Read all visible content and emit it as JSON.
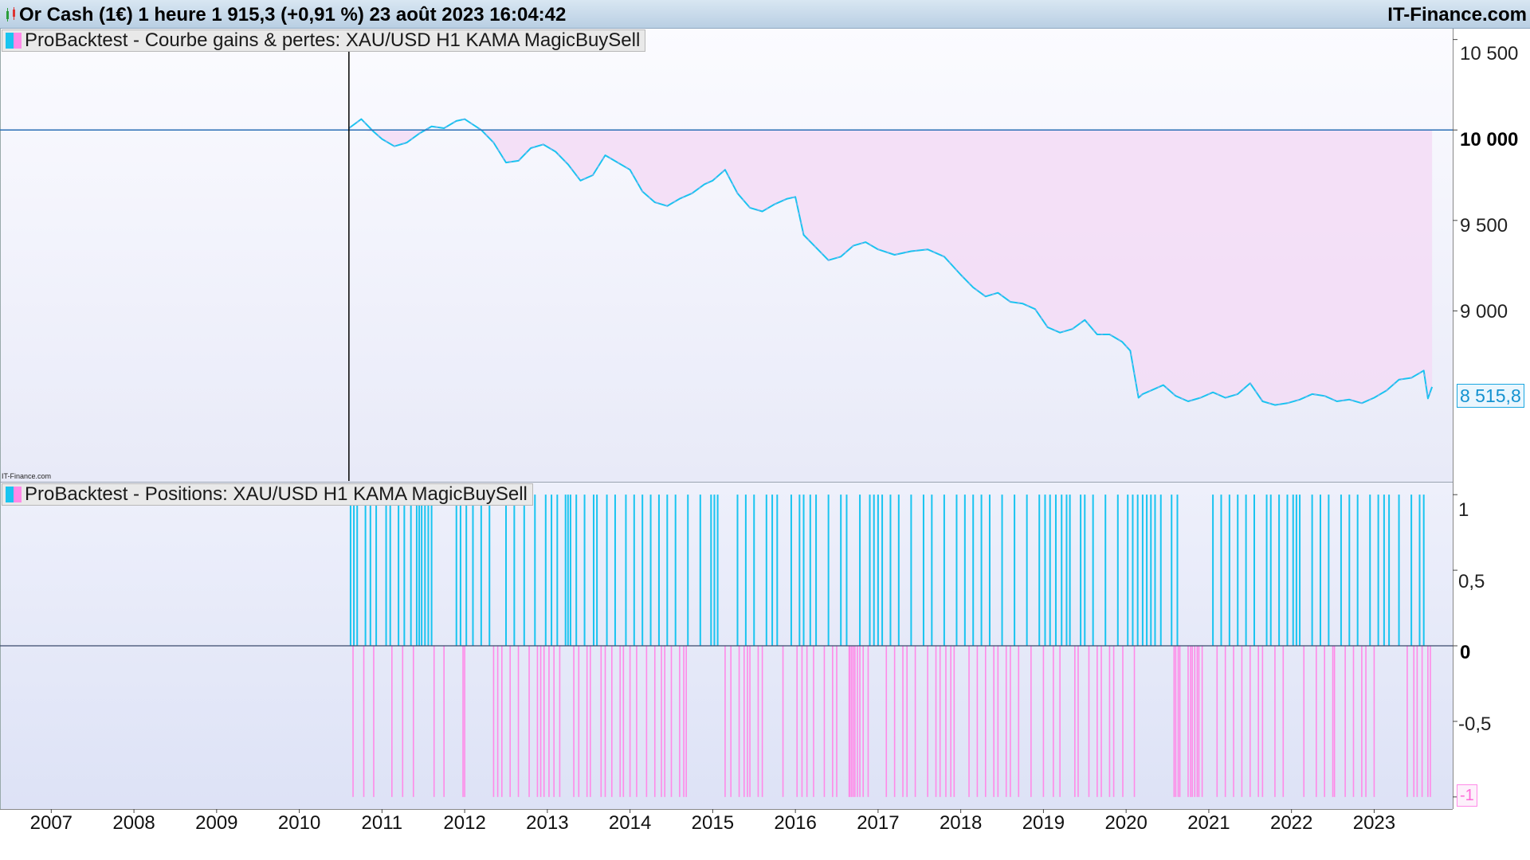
{
  "window": {
    "title": "Or Cash (1€) 1 heure 1 915,3 (+0,91 %) 23 août 2023 16:04:42",
    "site": "IT-Finance.com",
    "watermark": "IT-Finance.com"
  },
  "colors": {
    "buy": "#19c4f0",
    "sell": "#ff8ae8",
    "fill": "#f3dcf6",
    "reference_line": "#2a6fb5"
  },
  "chart_data": [
    {
      "type": "area",
      "legend": "ProBacktest - Courbe gains & pertes: XAU/USD H1 KAMA MagicBuySell",
      "y_ticks": [
        "10 500",
        "10 000",
        "9 500",
        "9 000"
      ],
      "y_tick_values": [
        10500,
        10000,
        9500,
        9000
      ],
      "ylim": [
        8060,
        10560
      ],
      "reference_value": 10000,
      "last_value_label": "8 515,8",
      "last_value": 8515.8,
      "series": [
        {
          "x": [
            2010.6,
            2010.75,
            2010.9,
            2011.0,
            2011.15,
            2011.3,
            2011.45,
            2011.6,
            2011.75,
            2011.9,
            2012.0,
            2012.1,
            2012.2,
            2012.35,
            2012.5,
            2012.65,
            2012.8,
            2012.95,
            2013.1,
            2013.25,
            2013.4,
            2013.55,
            2013.7,
            2013.85,
            2014.0,
            2014.15,
            2014.3,
            2014.45,
            2014.6,
            2014.75,
            2014.9,
            2015.0,
            2015.15,
            2015.3,
            2015.45,
            2015.6,
            2015.75,
            2015.9,
            2016.0,
            2016.1,
            2016.25,
            2016.4,
            2016.55,
            2016.7,
            2016.85,
            2017.0,
            2017.2,
            2017.4,
            2017.6,
            2017.8,
            2018.0,
            2018.15,
            2018.3,
            2018.45,
            2018.6,
            2018.75,
            2018.9,
            2019.05,
            2019.2,
            2019.35,
            2019.5,
            2019.65,
            2019.8,
            2019.95,
            2020.05,
            2020.15,
            2020.2,
            2020.3,
            2020.45,
            2020.6,
            2020.75,
            2020.9,
            2021.05,
            2021.2,
            2021.35,
            2021.5,
            2021.65,
            2021.8,
            2021.95,
            2022.1,
            2022.25,
            2022.4,
            2022.55,
            2022.7,
            2022.85,
            2023.0,
            2023.15,
            2023.3,
            2023.45,
            2023.6,
            2023.7,
            2023.65
          ],
          "y": [
            10010,
            10060,
            9990,
            9950,
            9910,
            9930,
            9980,
            10020,
            10010,
            10050,
            10060,
            10030,
            10000,
            9930,
            9820,
            9830,
            9900,
            9920,
            9880,
            9810,
            9720,
            9750,
            9860,
            9820,
            9780,
            9660,
            9600,
            9580,
            9620,
            9650,
            9700,
            9720,
            9780,
            9650,
            9570,
            9550,
            9590,
            9620,
            9630,
            9420,
            9350,
            9280,
            9300,
            9360,
            9380,
            9340,
            9310,
            9330,
            9340,
            9300,
            9200,
            9130,
            9080,
            9100,
            9050,
            9040,
            9010,
            8910,
            8880,
            8900,
            8950,
            8870,
            8870,
            8830,
            8780,
            8520,
            8540,
            8560,
            8590,
            8530,
            8500,
            8520,
            8550,
            8520,
            8540,
            8600,
            8500,
            8480,
            8490,
            8510,
            8540,
            8530,
            8500,
            8510,
            8490,
            8520,
            8560,
            8620,
            8630,
            8670,
            8580,
            8515.8
          ]
        }
      ]
    },
    {
      "type": "bar",
      "legend": "ProBacktest - Positions: XAU/USD H1 KAMA MagicBuySell",
      "y_ticks": [
        "1",
        "0,5",
        "0",
        "-0,5",
        "-1"
      ],
      "y_tick_values": [
        1,
        0.5,
        0,
        -0.5,
        -1
      ],
      "ylim": [
        -1.08,
        1.08
      ],
      "series": [
        {
          "name": "long",
          "value": 1,
          "x": [
            2010.62,
            2010.66,
            2010.7,
            2010.8,
            2010.86,
            2010.93,
            2011.05,
            2011.1,
            2011.2,
            2011.27,
            2011.35,
            2011.42,
            2011.45,
            2011.48,
            2011.52,
            2011.56,
            2011.6,
            2011.9,
            2011.95,
            2012.02,
            2012.1,
            2012.2,
            2012.3,
            2012.5,
            2012.6,
            2012.72,
            2012.85,
            2012.98,
            2013.05,
            2013.12,
            2013.22,
            2013.25,
            2013.28,
            2013.35,
            2013.45,
            2013.56,
            2013.6,
            2013.72,
            2013.82,
            2013.95,
            2014.05,
            2014.15,
            2014.25,
            2014.35,
            2014.45,
            2014.55,
            2014.7,
            2014.85,
            2014.98,
            2015.02,
            2015.06,
            2015.3,
            2015.4,
            2015.5,
            2015.65,
            2015.72,
            2015.78,
            2015.95,
            2016.05,
            2016.1,
            2016.18,
            2016.25,
            2016.4,
            2016.55,
            2016.62,
            2016.78,
            2016.9,
            2016.95,
            2017.0,
            2017.05,
            2017.15,
            2017.25,
            2017.4,
            2017.55,
            2017.65,
            2017.8,
            2017.95,
            2018.05,
            2018.15,
            2018.25,
            2018.35,
            2018.5,
            2018.65,
            2018.8,
            2018.95,
            2019.02,
            2019.08,
            2019.15,
            2019.22,
            2019.28,
            2019.32,
            2019.45,
            2019.5,
            2019.6,
            2019.75,
            2019.9,
            2020.02,
            2020.08,
            2020.14,
            2020.2,
            2020.25,
            2020.3,
            2020.35,
            2020.42,
            2020.55,
            2020.62,
            2021.05,
            2021.15,
            2021.25,
            2021.35,
            2021.45,
            2021.55,
            2021.7,
            2021.75,
            2021.85,
            2021.95,
            2022.02,
            2022.06,
            2022.1,
            2022.25,
            2022.35,
            2022.45,
            2022.6,
            2022.7,
            2022.8,
            2022.95,
            2023.05,
            2023.12,
            2023.18,
            2023.3,
            2023.45,
            2023.55,
            2023.6
          ]
        },
        {
          "name": "short",
          "value": -1,
          "x": [
            2010.65,
            2010.78,
            2010.9,
            2011.12,
            2011.25,
            2011.38,
            2011.63,
            2011.75,
            2011.98,
            2012.0,
            2012.35,
            2012.4,
            2012.45,
            2012.55,
            2012.65,
            2012.78,
            2012.88,
            2012.92,
            2012.96,
            2013.02,
            2013.08,
            2013.15,
            2013.32,
            2013.38,
            2013.48,
            2013.52,
            2013.65,
            2013.7,
            2013.78,
            2013.88,
            2013.92,
            2014.0,
            2014.08,
            2014.2,
            2014.3,
            2014.38,
            2014.42,
            2014.5,
            2014.6,
            2014.65,
            2014.68,
            2015.15,
            2015.22,
            2015.32,
            2015.38,
            2015.42,
            2015.45,
            2015.55,
            2015.6,
            2015.85,
            2016.02,
            2016.08,
            2016.14,
            2016.22,
            2016.35,
            2016.45,
            2016.5,
            2016.65,
            2016.66,
            2016.68,
            2016.7,
            2016.72,
            2016.75,
            2016.78,
            2016.82,
            2016.88,
            2017.1,
            2017.2,
            2017.3,
            2017.35,
            2017.45,
            2017.6,
            2017.7,
            2017.75,
            2017.82,
            2017.88,
            2017.92,
            2018.1,
            2018.2,
            2018.3,
            2018.4,
            2018.45,
            2018.55,
            2018.6,
            2018.7,
            2018.85,
            2019.0,
            2019.12,
            2019.2,
            2019.38,
            2019.42,
            2019.55,
            2019.65,
            2019.7,
            2019.8,
            2019.85,
            2019.96,
            2020.1,
            2020.58,
            2020.6,
            2020.63,
            2020.65,
            2020.75,
            2020.78,
            2020.8,
            2020.83,
            2020.86,
            2020.88,
            2020.92,
            2021.1,
            2021.2,
            2021.3,
            2021.4,
            2021.5,
            2021.6,
            2021.65,
            2021.8,
            2021.9,
            2022.15,
            2022.3,
            2022.4,
            2022.5,
            2022.52,
            2022.65,
            2022.75,
            2022.85,
            2022.9,
            2023.0,
            2023.4,
            2023.48,
            2023.52,
            2023.58,
            2023.65,
            2023.68
          ]
        }
      ]
    }
  ],
  "x_axis": {
    "ticks": [
      "2007",
      "2008",
      "2009",
      "2010",
      "2011",
      "2012",
      "2013",
      "2014",
      "2015",
      "2016",
      "2017",
      "2018",
      "2019",
      "2020",
      "2021",
      "2022",
      "2023"
    ],
    "tick_values": [
      2007,
      2008,
      2009,
      2010,
      2011,
      2012,
      2013,
      2014,
      2015,
      2016,
      2017,
      2018,
      2019,
      2020,
      2021,
      2022,
      2023
    ],
    "range": [
      2006.38,
      2023.95
    ]
  }
}
